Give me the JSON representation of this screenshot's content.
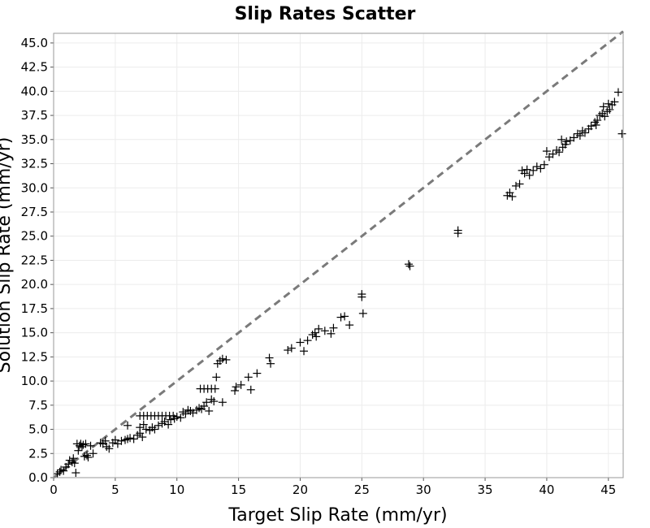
{
  "chart_data": {
    "type": "scatter",
    "title": "Slip Rates Scatter",
    "xlabel": "Target Slip Rate (mm/yr)",
    "ylabel": "Solution Slip Rate (mm/yr)",
    "xlim": [
      0,
      46.2
    ],
    "ylim": [
      0,
      46
    ],
    "x_ticks": [
      0,
      5,
      10,
      15,
      20,
      25,
      30,
      35,
      40,
      45
    ],
    "y_ticks": [
      0.0,
      2.5,
      5.0,
      7.5,
      10.0,
      12.5,
      15.0,
      17.5,
      20.0,
      22.5,
      25.0,
      27.5,
      30.0,
      32.5,
      35.0,
      37.5,
      40.0,
      42.5,
      45.0
    ],
    "y_tick_labels": [
      "0.0",
      "2.5",
      "5.0",
      "7.5",
      "10.0",
      "12.5",
      "15.0",
      "17.5",
      "20.0",
      "22.5",
      "25.0",
      "27.5",
      "30.0",
      "32.5",
      "35.0",
      "37.5",
      "40.0",
      "42.5",
      "45.0"
    ],
    "grid": true,
    "marker": "plus",
    "marker_color": "#000000",
    "reference_line": {
      "style": "dashed",
      "color": "#7a7a7a",
      "x": [
        0,
        46.2
      ],
      "y": [
        0,
        46.2
      ]
    },
    "points": [
      [
        0.3,
        0.4
      ],
      [
        0.5,
        0.6
      ],
      [
        0.6,
        0.8
      ],
      [
        0.8,
        0.7
      ],
      [
        1.0,
        1.1
      ],
      [
        1.2,
        1.4
      ],
      [
        1.3,
        1.8
      ],
      [
        1.5,
        1.6
      ],
      [
        1.6,
        2.0
      ],
      [
        1.7,
        1.5
      ],
      [
        1.8,
        0.5
      ],
      [
        1.9,
        3.5
      ],
      [
        2.0,
        2.8
      ],
      [
        2.1,
        3.3
      ],
      [
        2.2,
        3.5
      ],
      [
        2.3,
        3.2
      ],
      [
        2.4,
        3.4
      ],
      [
        2.5,
        2.2
      ],
      [
        2.6,
        3.5
      ],
      [
        2.7,
        2.3
      ],
      [
        2.8,
        2.1
      ],
      [
        3.0,
        3.3
      ],
      [
        3.2,
        2.5
      ],
      [
        3.8,
        3.6
      ],
      [
        4.0,
        3.5
      ],
      [
        4.2,
        3.8
      ],
      [
        4.3,
        3.2
      ],
      [
        4.5,
        3.0
      ],
      [
        4.8,
        3.6
      ],
      [
        5.0,
        3.9
      ],
      [
        5.2,
        3.5
      ],
      [
        5.5,
        3.8
      ],
      [
        5.8,
        3.9
      ],
      [
        6.0,
        4.0
      ],
      [
        6.2,
        4.1
      ],
      [
        6.5,
        4.0
      ],
      [
        6.8,
        4.4
      ],
      [
        7.0,
        4.6
      ],
      [
        7.2,
        4.2
      ],
      [
        6.0,
        5.4
      ],
      [
        7.0,
        5.2
      ],
      [
        7.3,
        5.5
      ],
      [
        7.5,
        5.0
      ],
      [
        7.8,
        4.9
      ],
      [
        8.0,
        5.2
      ],
      [
        8.2,
        5.0
      ],
      [
        8.5,
        5.4
      ],
      [
        8.8,
        5.6
      ],
      [
        9.0,
        5.8
      ],
      [
        9.3,
        5.5
      ],
      [
        9.5,
        6.0
      ],
      [
        9.8,
        6.1
      ],
      [
        10.0,
        6.3
      ],
      [
        10.3,
        6.2
      ],
      [
        10.5,
        6.8
      ],
      [
        10.7,
        6.6
      ],
      [
        10.9,
        7.0
      ],
      [
        11.1,
        6.9
      ],
      [
        11.3,
        6.7
      ],
      [
        11.6,
        7.0
      ],
      [
        11.8,
        7.2
      ],
      [
        12.0,
        7.1
      ],
      [
        12.2,
        7.4
      ],
      [
        12.4,
        7.8
      ],
      [
        12.6,
        6.9
      ],
      [
        12.8,
        8.1
      ],
      [
        13.0,
        7.9
      ],
      [
        13.7,
        7.8
      ],
      [
        14.7,
        9.0
      ],
      [
        14.8,
        9.4
      ],
      [
        15.2,
        9.6
      ],
      [
        15.8,
        10.4
      ],
      [
        16.0,
        9.1
      ],
      [
        16.5,
        10.8
      ],
      [
        7.0,
        6.4
      ],
      [
        7.3,
        6.4
      ],
      [
        7.6,
        6.4
      ],
      [
        7.9,
        6.4
      ],
      [
        8.2,
        6.4
      ],
      [
        8.5,
        6.4
      ],
      [
        8.8,
        6.4
      ],
      [
        9.1,
        6.4
      ],
      [
        9.4,
        6.4
      ],
      [
        9.7,
        6.4
      ],
      [
        11.9,
        9.2
      ],
      [
        12.2,
        9.2
      ],
      [
        12.5,
        9.2
      ],
      [
        12.8,
        9.2
      ],
      [
        13.1,
        9.2
      ],
      [
        13.2,
        10.4
      ],
      [
        13.3,
        11.8
      ],
      [
        13.5,
        12.1
      ],
      [
        13.7,
        12.3
      ],
      [
        14.0,
        12.2
      ],
      [
        17.5,
        12.4
      ],
      [
        17.6,
        11.8
      ],
      [
        19.0,
        13.2
      ],
      [
        19.3,
        13.4
      ],
      [
        20.0,
        14.0
      ],
      [
        20.3,
        13.1
      ],
      [
        20.6,
        14.2
      ],
      [
        21.0,
        14.8
      ],
      [
        21.2,
        15.0
      ],
      [
        21.3,
        14.6
      ],
      [
        21.5,
        15.4
      ],
      [
        22.0,
        15.2
      ],
      [
        22.5,
        14.9
      ],
      [
        22.7,
        15.5
      ],
      [
        23.3,
        16.6
      ],
      [
        23.6,
        16.7
      ],
      [
        24.0,
        15.8
      ],
      [
        25.0,
        18.7
      ],
      [
        25.0,
        19.0
      ],
      [
        25.1,
        17.0
      ],
      [
        28.8,
        22.1
      ],
      [
        28.9,
        21.9
      ],
      [
        32.8,
        25.6
      ],
      [
        32.8,
        25.3
      ],
      [
        36.8,
        29.2
      ],
      [
        37.0,
        29.5
      ],
      [
        37.2,
        29.1
      ],
      [
        37.5,
        30.2
      ],
      [
        37.8,
        30.4
      ],
      [
        38.0,
        31.8
      ],
      [
        38.2,
        31.5
      ],
      [
        38.4,
        31.9
      ],
      [
        38.6,
        31.3
      ],
      [
        38.9,
        31.8
      ],
      [
        39.2,
        32.2
      ],
      [
        39.5,
        32.0
      ],
      [
        39.8,
        32.4
      ],
      [
        40.0,
        33.8
      ],
      [
        40.2,
        33.2
      ],
      [
        40.5,
        33.5
      ],
      [
        40.8,
        33.9
      ],
      [
        41.0,
        33.7
      ],
      [
        41.3,
        34.2
      ],
      [
        41.5,
        34.5
      ],
      [
        41.2,
        35.0
      ],
      [
        41.6,
        34.8
      ],
      [
        41.9,
        34.9
      ],
      [
        42.2,
        35.2
      ],
      [
        42.5,
        35.6
      ],
      [
        42.7,
        35.4
      ],
      [
        42.9,
        35.9
      ],
      [
        43.1,
        35.7
      ],
      [
        43.4,
        36.1
      ],
      [
        43.6,
        36.4
      ],
      [
        43.9,
        36.8
      ],
      [
        44.1,
        37.0
      ],
      [
        44.3,
        37.5
      ],
      [
        44.5,
        37.7
      ],
      [
        44.7,
        37.4
      ],
      [
        44.9,
        37.9
      ],
      [
        45.1,
        38.1
      ],
      [
        45.3,
        38.6
      ],
      [
        45.5,
        38.9
      ],
      [
        45.8,
        39.9
      ],
      [
        46.1,
        35.6
      ],
      [
        44.0,
        36.5
      ],
      [
        44.6,
        38.4
      ],
      [
        45.0,
        38.7
      ]
    ]
  }
}
